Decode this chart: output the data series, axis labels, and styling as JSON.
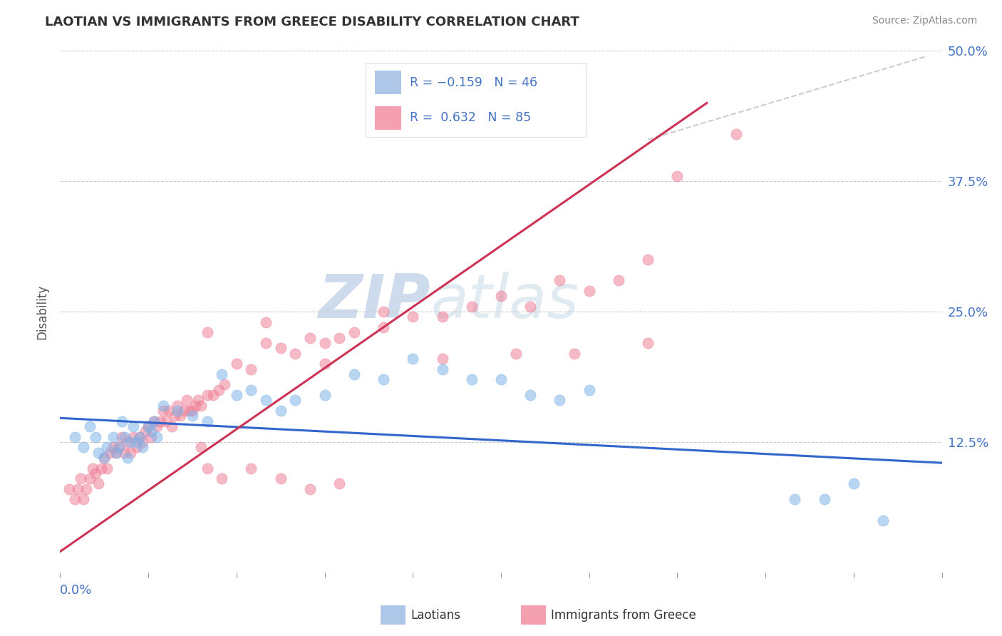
{
  "title": "LAOTIAN VS IMMIGRANTS FROM GREECE DISABILITY CORRELATION CHART",
  "source": "Source: ZipAtlas.com",
  "ylabel": "Disability",
  "watermark_zip": "ZIP",
  "watermark_atlas": "atlas",
  "xmin": 0.0,
  "xmax": 0.3,
  "ymin": 0.0,
  "ymax": 0.5,
  "ytick_vals": [
    0.0,
    0.125,
    0.25,
    0.375,
    0.5
  ],
  "ytick_labels": [
    "",
    "12.5%",
    "25.0%",
    "37.5%",
    "50.0%"
  ],
  "blue_R": -0.159,
  "blue_N": 46,
  "pink_R": 0.632,
  "pink_N": 85,
  "blue_line_x": [
    0.0,
    0.3
  ],
  "blue_line_y": [
    0.148,
    0.105
  ],
  "pink_line_x": [
    0.0,
    0.22
  ],
  "pink_line_y": [
    0.02,
    0.45
  ],
  "dashed_line_x": [
    0.2,
    0.295
  ],
  "dashed_line_y": [
    0.415,
    0.495
  ],
  "blue_color": "#7fb3e8",
  "pink_color": "#f08098",
  "blue_line_color": "#3366cc",
  "pink_line_color": "#cc3355",
  "dashed_color": "#cccccc",
  "scatter_size": 120,
  "scatter_alpha": 0.55,
  "blue_scatter_x": [
    0.005,
    0.008,
    0.01,
    0.012,
    0.013,
    0.015,
    0.016,
    0.018,
    0.019,
    0.02,
    0.021,
    0.022,
    0.023,
    0.024,
    0.025,
    0.026,
    0.027,
    0.028,
    0.03,
    0.031,
    0.032,
    0.033,
    0.035,
    0.04,
    0.045,
    0.05,
    0.055,
    0.06,
    0.065,
    0.07,
    0.075,
    0.08,
    0.09,
    0.1,
    0.11,
    0.12,
    0.13,
    0.14,
    0.15,
    0.16,
    0.17,
    0.18,
    0.25,
    0.26,
    0.27,
    0.28
  ],
  "blue_scatter_y": [
    0.13,
    0.12,
    0.14,
    0.13,
    0.115,
    0.11,
    0.12,
    0.13,
    0.115,
    0.12,
    0.145,
    0.13,
    0.11,
    0.125,
    0.14,
    0.125,
    0.13,
    0.12,
    0.14,
    0.135,
    0.145,
    0.13,
    0.16,
    0.155,
    0.15,
    0.145,
    0.19,
    0.17,
    0.175,
    0.165,
    0.155,
    0.165,
    0.17,
    0.19,
    0.185,
    0.205,
    0.195,
    0.185,
    0.185,
    0.17,
    0.165,
    0.175,
    0.07,
    0.07,
    0.085,
    0.05
  ],
  "pink_scatter_x": [
    0.003,
    0.005,
    0.006,
    0.007,
    0.008,
    0.009,
    0.01,
    0.011,
    0.012,
    0.013,
    0.014,
    0.015,
    0.016,
    0.017,
    0.018,
    0.019,
    0.02,
    0.021,
    0.022,
    0.023,
    0.024,
    0.025,
    0.026,
    0.027,
    0.028,
    0.029,
    0.03,
    0.031,
    0.032,
    0.033,
    0.034,
    0.035,
    0.036,
    0.037,
    0.038,
    0.039,
    0.04,
    0.041,
    0.042,
    0.043,
    0.044,
    0.045,
    0.046,
    0.047,
    0.048,
    0.05,
    0.052,
    0.054,
    0.056,
    0.06,
    0.065,
    0.07,
    0.075,
    0.08,
    0.085,
    0.09,
    0.095,
    0.1,
    0.11,
    0.12,
    0.13,
    0.14,
    0.15,
    0.16,
    0.17,
    0.18,
    0.19,
    0.2,
    0.05,
    0.07,
    0.09,
    0.11,
    0.2,
    0.13,
    0.155,
    0.175,
    0.048,
    0.05,
    0.055,
    0.065,
    0.075,
    0.085,
    0.095,
    0.21,
    0.23
  ],
  "pink_scatter_y": [
    0.08,
    0.07,
    0.08,
    0.09,
    0.07,
    0.08,
    0.09,
    0.1,
    0.095,
    0.085,
    0.1,
    0.11,
    0.1,
    0.115,
    0.12,
    0.115,
    0.12,
    0.13,
    0.115,
    0.125,
    0.115,
    0.13,
    0.12,
    0.13,
    0.125,
    0.135,
    0.14,
    0.13,
    0.145,
    0.14,
    0.145,
    0.155,
    0.145,
    0.155,
    0.14,
    0.15,
    0.16,
    0.15,
    0.155,
    0.165,
    0.155,
    0.155,
    0.16,
    0.165,
    0.16,
    0.17,
    0.17,
    0.175,
    0.18,
    0.2,
    0.195,
    0.22,
    0.215,
    0.21,
    0.225,
    0.22,
    0.225,
    0.23,
    0.235,
    0.245,
    0.245,
    0.255,
    0.265,
    0.255,
    0.28,
    0.27,
    0.28,
    0.3,
    0.23,
    0.24,
    0.2,
    0.25,
    0.22,
    0.205,
    0.21,
    0.21,
    0.12,
    0.1,
    0.09,
    0.1,
    0.09,
    0.08,
    0.085,
    0.38,
    0.42
  ]
}
